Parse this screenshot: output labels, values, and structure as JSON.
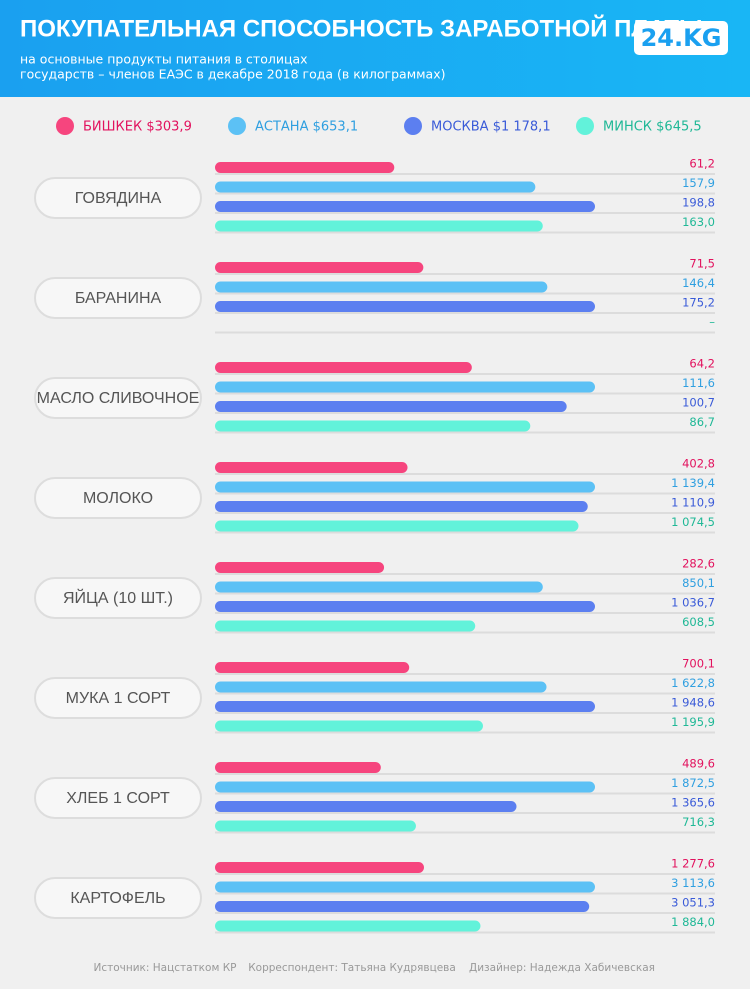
{
  "logo": "24.KG",
  "footer": [
    "Источник: Нацстатком КР",
    "Корреспондент: Татьяна Кудрявцева",
    "Дизайнер: Надежда Хабичевская"
  ],
  "chart_data": {
    "type": "bar",
    "orientation": "horizontal",
    "title": "ПОКУПАТЕЛЬНАЯ СПОСОБНОСТЬ ЗАРАБОТНОЙ ПЛАТЫ",
    "subtitle": [
      "на основные продукты питания в столицах",
      "государств – членов ЕАЭС в декабре 2018 года (в килограммах)"
    ],
    "categories": [
      "ГОВЯДИНА",
      "БАРАНИНА",
      "МАСЛО СЛИВОЧНОЕ",
      "МОЛОКО",
      "ЯЙЦА (10 ШТ.)",
      "МУКА 1 СОРТ",
      "ХЛЕБ 1 СОРТ",
      "КАРТОФЕЛЬ"
    ],
    "series": [
      {
        "name": "БИШКЕК $303,9",
        "color": "#f6457e",
        "label_color": "#e2125e",
        "values": [
          61.2,
          71.5,
          64.2,
          402.8,
          282.6,
          700.1,
          489.6,
          1277.6
        ],
        "value_labels": [
          "61,2",
          "71,5",
          "64,2",
          "402,8",
          "282,6",
          "700,1",
          "489,6",
          "1 277,6"
        ]
      },
      {
        "name": "АСТАНА $653,1",
        "color": "#5cc1f5",
        "label_color": "#2f9fe0",
        "values": [
          157.9,
          146.4,
          111.6,
          1139.4,
          850.1,
          1622.8,
          1872.5,
          3113.6
        ],
        "value_labels": [
          "157,9",
          "146,4",
          "111,6",
          "1 139,4",
          "850,1",
          "1 622,8",
          "1 872,5",
          "3 113,6"
        ]
      },
      {
        "name": "МОСКВА $1 178,1",
        "color": "#5c7ff0",
        "label_color": "#3a5bd8",
        "values": [
          198.8,
          175.2,
          100.7,
          1110.9,
          1036.7,
          1948.6,
          1365.6,
          3051.3
        ],
        "value_labels": [
          "198,8",
          "175,2",
          "100,7",
          "1 110,9",
          "1 036,7",
          "1 948,6",
          "1 365,6",
          "3 051,3"
        ]
      },
      {
        "name": "МИНСК $645,5",
        "color": "#62f2da",
        "label_color": "#1fb896",
        "values": [
          163.0,
          null,
          86.7,
          1074.5,
          608.5,
          1195.9,
          716.3,
          1884.0
        ],
        "value_labels": [
          "163,0",
          "–",
          "86,7",
          "1 074,5",
          "608,5",
          "1 195,9",
          "716,3",
          "1 884,0"
        ]
      }
    ]
  }
}
